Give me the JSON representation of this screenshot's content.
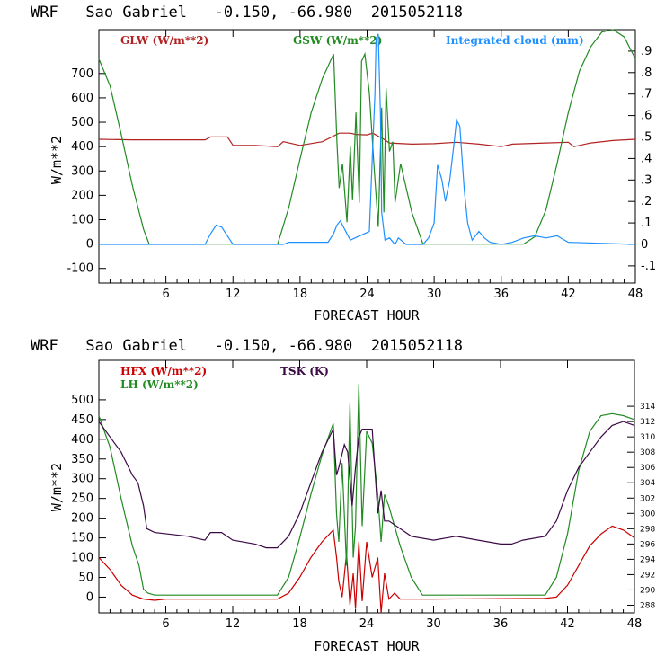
{
  "chart_data": [
    {
      "type": "line",
      "title": "WRF   Sao Gabriel   -0.150, -66.980  2015052118",
      "xlabel": "FORECAST HOUR",
      "ylabel": "W/m**2",
      "xlim": [
        0,
        48
      ],
      "ylim": [
        -160,
        880
      ],
      "y2lim": [
        -0.18,
        1.0
      ],
      "xticks": [
        "6",
        "12",
        "18",
        "24",
        "30",
        "36",
        "42",
        "48"
      ],
      "yticks": [
        "-100",
        "0",
        "100",
        "200",
        "300",
        "400",
        "500",
        "600",
        "700"
      ],
      "y2ticks": [
        "-.1",
        "0",
        ".1",
        ".2",
        ".3",
        ".4",
        ".5",
        ".6",
        ".7",
        ".8",
        ".9"
      ],
      "legend": [
        "GLW (W/m**2)",
        "GSW (W/m**2)",
        "Integrated cloud (mm)"
      ],
      "series": [
        {
          "name": "GLW (W/m**2)",
          "axis": "left",
          "color": "#b22222",
          "x": [
            0,
            3,
            6,
            9.5,
            10,
            11.5,
            12,
            14,
            16,
            16.5,
            18,
            20,
            21.5,
            22.5,
            23,
            24,
            24.5,
            25.5,
            26,
            28,
            30,
            32,
            34,
            36,
            37,
            40,
            42,
            42.5,
            44,
            46,
            48
          ],
          "y": [
            430,
            428,
            428,
            428,
            440,
            440,
            405,
            405,
            400,
            420,
            405,
            420,
            455,
            455,
            450,
            448,
            455,
            430,
            415,
            410,
            412,
            418,
            410,
            400,
            410,
            415,
            418,
            400,
            415,
            425,
            430
          ]
        },
        {
          "name": "GSW (W/m**2)",
          "axis": "left",
          "color": "#228b22",
          "x": [
            0,
            1,
            2,
            3,
            4,
            4.5,
            16,
            17,
            18,
            19,
            20,
            21,
            21.3,
            21.5,
            21.8,
            22.2,
            22.5,
            22.7,
            23,
            23.3,
            23.5,
            23.8,
            24.2,
            24.6,
            25.0,
            25.3,
            25.5,
            25.7,
            26.0,
            26.3,
            26.5,
            27,
            28,
            29,
            38,
            39,
            40,
            41,
            42,
            43,
            44,
            45,
            46,
            47,
            48
          ],
          "y": [
            760,
            650,
            450,
            240,
            60,
            0,
            0,
            150,
            350,
            540,
            680,
            780,
            420,
            230,
            330,
            90,
            400,
            180,
            540,
            170,
            750,
            780,
            620,
            330,
            70,
            560,
            130,
            640,
            380,
            420,
            170,
            330,
            130,
            0,
            0,
            30,
            140,
            330,
            540,
            710,
            810,
            870,
            880,
            850,
            760
          ]
        },
        {
          "name": "Integrated cloud (mm)",
          "axis": "right",
          "color": "#1e90ff",
          "x": [
            0,
            9.5,
            10.0,
            10.5,
            11.0,
            11.5,
            12.0,
            16.5,
            17,
            20.5,
            21.0,
            21.3,
            21.6,
            22.0,
            22.5,
            24.2,
            24.5,
            24.7,
            24.8,
            25.0,
            25.2,
            25.3,
            25.6,
            26.0,
            26.5,
            26.8,
            27.5,
            29.0,
            29.5,
            30.0,
            30.3,
            30.7,
            31.0,
            31.4,
            31.8,
            32.0,
            32.3,
            32.7,
            33.0,
            33.4,
            34.0,
            34.5,
            35.0,
            36.0,
            37.0,
            38.0,
            39.0,
            40.0,
            41.0,
            42.0,
            48
          ],
          "y": [
            0,
            0,
            0.05,
            0.09,
            0.08,
            0.04,
            0,
            0,
            0.01,
            0.01,
            0.05,
            0.09,
            0.11,
            0.07,
            0.02,
            0.06,
            0.45,
            0.7,
            0.96,
            0.98,
            0.6,
            0.15,
            0.02,
            0.03,
            0.0,
            0.03,
            0.0,
            0.0,
            0.03,
            0.1,
            0.37,
            0.3,
            0.2,
            0.3,
            0.48,
            0.58,
            0.55,
            0.25,
            0.1,
            0.02,
            0.06,
            0.03,
            0.01,
            0.0,
            0.01,
            0.03,
            0.04,
            0.03,
            0.04,
            0.01,
            0
          ]
        }
      ]
    },
    {
      "type": "line",
      "title": "WRF   Sao Gabriel   -0.150, -66.980  2015052118",
      "xlabel": "FORECAST HOUR",
      "ylabel": "W/m**2",
      "xlim": [
        0,
        48
      ],
      "ylim": [
        -40,
        600
      ],
      "y2lim": [
        287,
        320
      ],
      "xticks": [
        "6",
        "12",
        "18",
        "24",
        "30",
        "36",
        "42",
        "48"
      ],
      "yticks": [
        "0",
        "50",
        "100",
        "150",
        "200",
        "250",
        "300",
        "350",
        "400",
        "450",
        "500"
      ],
      "y2ticks": [
        "288",
        "290",
        "292",
        "294",
        "296",
        "298",
        "300",
        "302",
        "304",
        "306",
        "308",
        "310",
        "312",
        "314"
      ],
      "legend": [
        "HFX (W/m**2)",
        "LH (W/m**2)",
        "TSK (K)"
      ],
      "series": [
        {
          "name": "HFX (W/m**2)",
          "axis": "left",
          "color": "#cc0000",
          "x": [
            0,
            1,
            2,
            3,
            4,
            5,
            6,
            16,
            17,
            18,
            19,
            20,
            21,
            21.3,
            21.5,
            21.8,
            22.2,
            22.5,
            22.8,
            23.0,
            23.3,
            23.6,
            24.0,
            24.5,
            25.0,
            25.3,
            25.6,
            26.0,
            26.5,
            27,
            28,
            30,
            40,
            41,
            42,
            43,
            44,
            45,
            46,
            47,
            48
          ],
          "y": [
            100,
            70,
            30,
            5,
            -5,
            -8,
            -5,
            -5,
            10,
            50,
            100,
            140,
            170,
            100,
            40,
            0,
            110,
            -20,
            60,
            -30,
            140,
            -10,
            140,
            50,
            100,
            -40,
            60,
            -5,
            10,
            -5,
            -5,
            -5,
            -3,
            0,
            30,
            80,
            130,
            160,
            180,
            170,
            150
          ]
        },
        {
          "name": "LH (W/m**2)",
          "axis": "left",
          "color": "#228b22",
          "x": [
            0,
            1,
            2,
            3,
            3.6,
            4.0,
            4.4,
            5,
            6,
            16,
            17,
            18,
            19,
            20,
            21,
            21.3,
            21.5,
            21.8,
            22.2,
            22.5,
            22.8,
            23.0,
            23.3,
            23.6,
            24.0,
            24.5,
            25.0,
            25.3,
            25.6,
            26.0,
            26.5,
            27,
            28,
            29,
            40,
            41,
            42,
            43,
            44,
            45,
            46,
            47,
            48
          ],
          "y": [
            460,
            380,
            250,
            130,
            80,
            20,
            10,
            5,
            5,
            5,
            50,
            150,
            260,
            360,
            440,
            210,
            140,
            340,
            80,
            490,
            100,
            180,
            540,
            180,
            420,
            390,
            260,
            140,
            260,
            230,
            180,
            130,
            50,
            5,
            5,
            50,
            160,
            320,
            420,
            460,
            465,
            460,
            450
          ]
        },
        {
          "name": "TSK (K)",
          "axis": "right",
          "color": "#3b0a45",
          "x": [
            0,
            1,
            2,
            3,
            3.5,
            4.0,
            4.3,
            5,
            8,
            9.5,
            10,
            11,
            12,
            14,
            15,
            16,
            17,
            18,
            19,
            20,
            21,
            21.3,
            21.5,
            22,
            22.3,
            22.7,
            23.0,
            23.3,
            23.6,
            24,
            24.5,
            25.0,
            25.3,
            25.6,
            26,
            27,
            28,
            30,
            32,
            34,
            36,
            37,
            38,
            40,
            41,
            42,
            43,
            44,
            45,
            46,
            47,
            48
          ],
          "y": [
            312,
            310,
            308,
            305,
            304,
            301,
            298,
            297.5,
            297,
            296.5,
            297.5,
            297.5,
            296.5,
            296,
            295.5,
            295.5,
            297,
            300,
            304,
            308,
            311,
            305,
            306,
            309,
            308,
            301,
            306,
            310,
            311,
            311,
            311,
            300,
            303,
            299,
            299,
            298,
            297,
            296.5,
            297,
            296.5,
            296,
            296,
            296.5,
            297,
            299,
            303,
            306,
            308,
            310,
            311.5,
            312,
            311.5
          ]
        }
      ]
    }
  ]
}
